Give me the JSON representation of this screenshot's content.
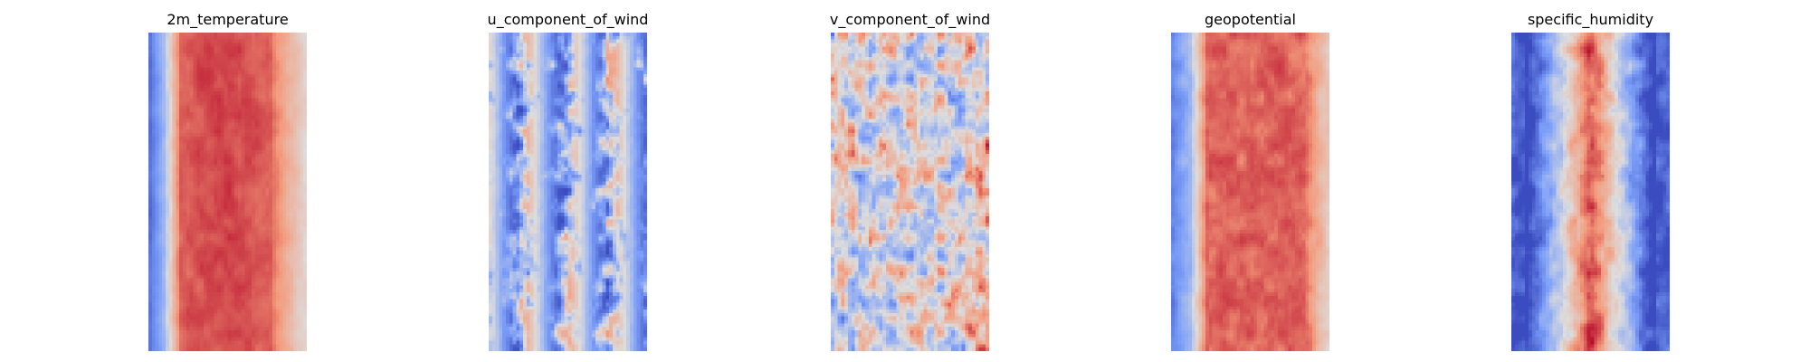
{
  "chart_data": [
    {
      "type": "heatmap",
      "title": "2m_temperature",
      "colormap": "coolwarm",
      "grid": false,
      "axes_visible": false,
      "profile": "temperature"
    },
    {
      "type": "heatmap",
      "title": "u_component_of_wind",
      "colormap": "coolwarm",
      "grid": false,
      "axes_visible": false,
      "profile": "uwind"
    },
    {
      "type": "heatmap",
      "title": "v_component_of_wind",
      "colormap": "coolwarm",
      "grid": false,
      "axes_visible": false,
      "profile": "vwind"
    },
    {
      "type": "heatmap",
      "title": "geopotential",
      "colormap": "coolwarm",
      "grid": false,
      "axes_visible": false,
      "profile": "geopotential"
    },
    {
      "type": "heatmap",
      "title": "specific_humidity",
      "colormap": "coolwarm",
      "grid": false,
      "axes_visible": false,
      "profile": "humidity"
    }
  ],
  "colors": {
    "cool_end": "#3b4cc0",
    "mid": "#dddddd",
    "warm_end": "#b40426"
  }
}
